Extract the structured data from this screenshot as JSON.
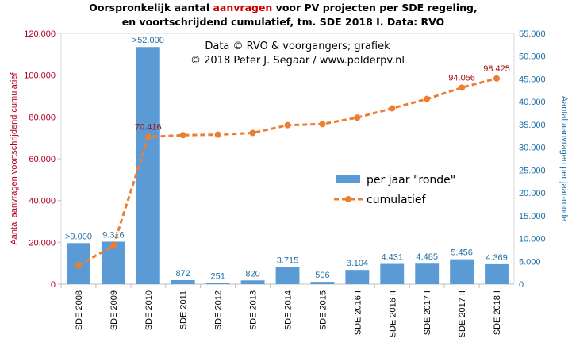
{
  "header": {
    "title_part1": "Oorspronkelijk  aantal ",
    "title_highlight": "aanvragen",
    "title_part2": " voor PV projecten  per SDE regeling,",
    "title_line2": "en voortschrijdend  cumulatief,  tm. SDE  2018 I. Data: RVO"
  },
  "credits": {
    "line1": "Data © RVO & voorgangers;  grafiek",
    "line2": "© 2018  Peter J. Segaar / www.polderpv.nl"
  },
  "colors": {
    "bars": "#5b9bd5",
    "line": "#ed7d31",
    "left_axis": "#b00020",
    "right_axis": "#1f6fa5"
  },
  "chart_data": {
    "type": "bar",
    "categories": [
      "SDE 2008",
      "SDE 2009",
      "SDE 2010",
      "SDE 2011",
      "SDE 2012",
      "SDE 2013",
      "SDE 2014",
      "SDE 2015",
      "SDE 2016 I",
      "SDE 2016 II",
      "SDE 2017 I",
      "SDE 2017 II",
      "SDE 2018 I"
    ],
    "ylabel": "Aantal aanvragen voortschrijdend cumulatief",
    "y2label": "Aantal aanvragen per jaar-ronde",
    "ylim": [
      0,
      120000
    ],
    "y2lim": [
      0,
      55000
    ],
    "yticks": [
      "0",
      "20.000",
      "40.000",
      "60.000",
      "80.000",
      "100.000",
      "120.000"
    ],
    "y2ticks": [
      "0",
      "5.000",
      "10.000",
      "15.000",
      "20.000",
      "25.000",
      "30.000",
      "35.000",
      "40.000",
      "45.000",
      "50.000",
      "55.000"
    ],
    "legend_position": "right",
    "grid": false,
    "series": [
      {
        "name": "per jaar \"ronde\"",
        "kind": "bar",
        "axis": "right",
        "values": [
          9000,
          9316,
          52000,
          872,
          251,
          820,
          3715,
          506,
          3104,
          4431,
          4485,
          5456,
          4369
        ],
        "labels": [
          ">9.000",
          "9.316",
          ">52.000",
          "872",
          "251",
          "820",
          "3.715",
          "506",
          "3.104",
          "4.431",
          "4.485",
          "5.456",
          "4.369"
        ]
      },
      {
        "name": "cumulatief",
        "kind": "line",
        "axis": "left",
        "values": [
          9000,
          18316,
          70416,
          71288,
          71539,
          72359,
          76074,
          76580,
          79684,
          84115,
          88600,
          94056,
          98425
        ],
        "labels": [
          "",
          "",
          "70.416",
          "",
          "",
          "",
          "",
          "",
          "",
          "",
          "",
          "94.056",
          "98.425"
        ]
      }
    ]
  }
}
